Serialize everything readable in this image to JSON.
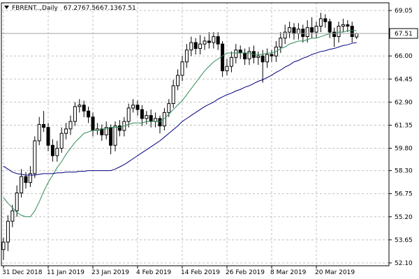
{
  "chart_data": {
    "type": "candlestick",
    "title": "FBRENT..,Daily",
    "categories": [
      "31 Dec 2018",
      null,
      null,
      null,
      null,
      null,
      null,
      null,
      null,
      null,
      "11 Jan 2019",
      null,
      null,
      null,
      null,
      null,
      null,
      null,
      null,
      null,
      "23 Jan 2019",
      null,
      null,
      null,
      null,
      null,
      null,
      null,
      null,
      null,
      "4 Feb 2019",
      null,
      null,
      null,
      null,
      null,
      null,
      null,
      null,
      null,
      "14 Feb 2019",
      null,
      null,
      null,
      null,
      null,
      null,
      null,
      null,
      null,
      "26 Feb 2019",
      null,
      null,
      null,
      null,
      null,
      null,
      null,
      null,
      null,
      "8 Mar 2019",
      null,
      null,
      null,
      null,
      null,
      null,
      null,
      null,
      null,
      "20 Mar 2019",
      null,
      null,
      null,
      null,
      null,
      null,
      null,
      null,
      null
    ],
    "open": [
      53.0,
      53.5,
      54.9,
      55.6,
      56.8,
      57.9,
      57.5,
      58.1,
      60.3,
      61.4,
      61.2,
      60.0,
      59.3,
      59.8,
      60.8,
      61.1,
      61.6,
      62.6,
      62.7,
      62.3,
      61.9,
      61.0,
      61.1,
      60.7,
      61.2,
      60.0,
      61.3,
      61.0,
      61.6,
      62.5,
      62.7,
      62.4,
      61.8,
      62.0,
      61.6,
      61.8,
      61.3,
      62.2,
      62.8,
      64.0,
      64.7,
      65.6,
      66.4,
      66.9,
      66.5,
      66.8,
      67.0,
      66.9,
      67.3,
      66.8,
      65.0,
      65.3,
      65.9,
      66.4,
      66.2,
      65.8,
      66.3,
      65.9,
      66.0,
      65.6,
      66.1,
      66.0,
      66.6,
      67.2,
      67.6,
      67.9,
      67.5,
      67.8,
      67.3,
      67.9,
      67.6,
      68.0,
      68.5,
      68.3,
      67.6,
      67.3,
      68.0,
      68.1,
      68.0,
      67.27
    ],
    "high": [
      53.8,
      55.3,
      56.0,
      57.3,
      58.4,
      58.2,
      58.6,
      60.6,
      61.9,
      62.3,
      61.5,
      60.4,
      60.3,
      61.2,
      61.5,
      62.0,
      62.9,
      63.1,
      63.0,
      62.6,
      62.2,
      61.5,
      61.4,
      61.6,
      61.4,
      61.6,
      61.7,
      61.9,
      62.8,
      63.1,
      63.0,
      62.7,
      62.3,
      62.4,
      62.2,
      62.0,
      62.5,
      63.1,
      64.4,
      65.1,
      66.0,
      66.8,
      67.3,
      67.2,
      67.4,
      67.3,
      67.6,
      67.6,
      67.6,
      67.0,
      65.8,
      66.3,
      66.8,
      66.7,
      66.5,
      66.6,
      66.7,
      66.3,
      66.4,
      66.5,
      66.4,
      67.0,
      67.6,
      68.1,
      68.3,
      68.2,
      68.2,
      68.1,
      68.4,
      68.6,
      68.3,
      68.9,
      68.8,
      68.5,
      67.9,
      68.3,
      68.5,
      68.4,
      68.3,
      67.56
    ],
    "low": [
      52.3,
      52.9,
      54.5,
      55.2,
      56.5,
      57.1,
      57.2,
      57.8,
      60.0,
      60.9,
      59.6,
      58.9,
      58.9,
      59.5,
      60.4,
      60.7,
      61.3,
      62.2,
      61.9,
      61.5,
      60.6,
      60.7,
      60.3,
      60.4,
      59.4,
      59.6,
      60.6,
      60.6,
      61.2,
      62.2,
      62.0,
      61.3,
      61.4,
      61.2,
      61.2,
      60.8,
      61.0,
      61.9,
      62.5,
      63.7,
      64.3,
      65.2,
      66.0,
      66.1,
      66.1,
      66.4,
      66.5,
      66.5,
      66.4,
      64.6,
      64.7,
      64.9,
      65.5,
      65.8,
      65.4,
      65.4,
      65.5,
      65.4,
      64.2,
      65.2,
      65.6,
      65.6,
      66.2,
      66.8,
      67.2,
      67.1,
      67.1,
      66.9,
      66.9,
      67.2,
      67.2,
      67.6,
      67.9,
      67.2,
      66.6,
      66.9,
      67.6,
      67.6,
      66.9,
      67.13
    ],
    "close": [
      53.5,
      54.9,
      55.6,
      56.8,
      57.9,
      57.5,
      58.1,
      60.3,
      61.4,
      61.2,
      60.0,
      59.3,
      59.8,
      60.8,
      61.1,
      61.6,
      62.6,
      62.7,
      62.3,
      61.9,
      61.0,
      61.1,
      60.7,
      61.2,
      60.0,
      61.3,
      61.0,
      61.6,
      62.5,
      62.7,
      62.4,
      61.8,
      62.0,
      61.6,
      61.8,
      61.3,
      62.2,
      62.8,
      64.0,
      64.7,
      65.6,
      66.4,
      66.9,
      66.5,
      66.8,
      67.0,
      66.9,
      67.3,
      66.8,
      65.0,
      65.3,
      65.9,
      66.4,
      66.2,
      65.8,
      66.3,
      65.9,
      66.0,
      65.6,
      66.1,
      66.0,
      66.6,
      67.2,
      67.6,
      67.9,
      67.5,
      67.8,
      67.3,
      67.9,
      67.6,
      68.0,
      68.5,
      68.3,
      67.6,
      67.3,
      68.0,
      68.1,
      68.0,
      67.3,
      67.51
    ],
    "ma_lines": [
      {
        "color": "#2e8b57",
        "values": [
          56.5,
          56.1,
          55.8,
          55.5,
          55.3,
          55.2,
          55.2,
          55.6,
          56.2,
          56.9,
          57.5,
          58.0,
          58.5,
          58.9,
          59.4,
          59.8,
          60.2,
          60.5,
          60.8,
          60.9,
          61.0,
          61.0,
          61.1,
          61.1,
          61.2,
          61.2,
          61.2,
          61.3,
          61.4,
          61.5,
          61.5,
          61.5,
          61.6,
          61.6,
          61.6,
          61.6,
          61.8,
          62.1,
          62.4,
          62.7,
          63.0,
          63.4,
          63.8,
          64.2,
          64.6,
          65.0,
          65.3,
          65.6,
          65.8,
          66.0,
          66.2,
          66.2,
          66.2,
          66.2,
          66.2,
          66.2,
          66.1,
          66.1,
          66.1,
          66.2,
          66.2,
          66.3,
          66.5,
          66.6,
          66.8,
          66.9,
          67.0,
          67.0,
          67.1,
          67.2,
          67.2,
          67.3,
          67.4,
          67.5,
          67.5,
          67.6,
          67.6,
          67.7,
          67.7,
          67.7
        ]
      },
      {
        "color": "#000080",
        "values": [
          58.6,
          58.4,
          58.2,
          58.1,
          58.05,
          58.0,
          58.0,
          58.0,
          58.05,
          58.1,
          58.1,
          58.1,
          58.15,
          58.15,
          58.2,
          58.2,
          58.2,
          58.25,
          58.25,
          58.3,
          58.3,
          58.3,
          58.3,
          58.3,
          58.3,
          58.4,
          58.55,
          58.7,
          58.9,
          59.1,
          59.3,
          59.5,
          59.7,
          59.9,
          60.1,
          60.3,
          60.55,
          60.8,
          61.05,
          61.3,
          61.6,
          61.8,
          62.0,
          62.2,
          62.4,
          62.6,
          62.75,
          62.9,
          63.1,
          63.25,
          63.4,
          63.5,
          63.65,
          63.75,
          63.9,
          64.0,
          64.15,
          64.3,
          64.4,
          64.55,
          64.7,
          64.9,
          65.05,
          65.25,
          65.4,
          65.6,
          65.7,
          65.85,
          65.95,
          66.1,
          66.2,
          66.3,
          66.35,
          66.45,
          66.5,
          66.6,
          66.7,
          66.75,
          66.85,
          66.9
        ]
      }
    ],
    "ylim": [
      51.91,
      69.57
    ],
    "yticks": [
      69.05,
      {
        "value": 66,
        "label": "66.00"
      },
      64.45,
      {
        "value": 62.9,
        "label": "62.90"
      },
      61.35,
      {
        "value": 59.8,
        "label": "59.80"
      },
      {
        "value": 58.3,
        "label": "58.30"
      },
      56.75,
      {
        "value": 55.2,
        "label": "55.20"
      },
      53.65,
      {
        "value": 52.1,
        "label": "52.10"
      }
    ],
    "grid": true,
    "bull_color": "#ffffff",
    "bear_color": "#000000"
  }
}
